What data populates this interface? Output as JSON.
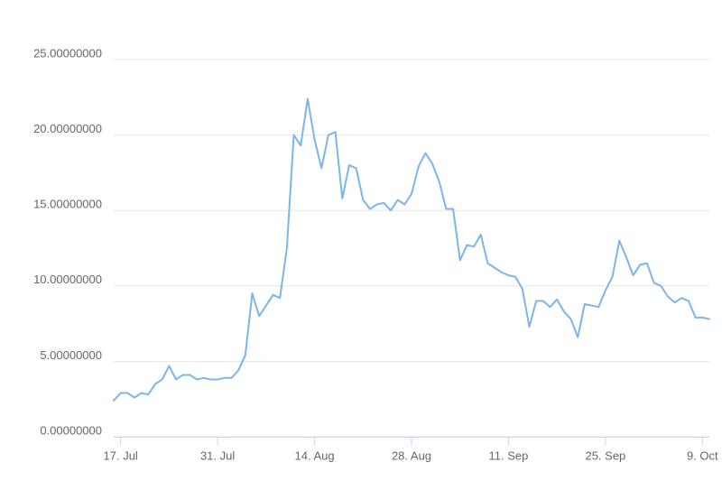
{
  "chart_data": {
    "type": "line",
    "color": "#7cb5ec",
    "grid": true,
    "categories": [
      null,
      "17. Jul",
      null,
      null,
      null,
      null,
      null,
      null,
      null,
      null,
      null,
      null,
      null,
      null,
      null,
      "31. Jul",
      null,
      null,
      null,
      null,
      null,
      null,
      null,
      null,
      null,
      null,
      null,
      null,
      null,
      "14. Aug",
      null,
      null,
      null,
      null,
      null,
      null,
      null,
      null,
      null,
      null,
      null,
      null,
      null,
      "28. Aug",
      null,
      null,
      null,
      null,
      null,
      null,
      null,
      null,
      null,
      null,
      null,
      null,
      null,
      "11. Sep",
      null,
      null,
      null,
      null,
      null,
      null,
      null,
      null,
      null,
      null,
      null,
      null,
      null,
      "25. Sep",
      null,
      null,
      null,
      null,
      null,
      null,
      null,
      null,
      null,
      null,
      null,
      null,
      null,
      "9. Oct",
      null
    ],
    "values": [
      2.4,
      2.9,
      2.9,
      2.6,
      2.9,
      2.8,
      3.5,
      3.8,
      4.7,
      3.8,
      4.1,
      4.1,
      3.8,
      3.9,
      3.8,
      3.8,
      3.9,
      3.9,
      4.4,
      5.4,
      9.5,
      8.0,
      8.7,
      9.4,
      9.2,
      12.5,
      20.0,
      19.3,
      22.4,
      19.7,
      17.8,
      20.0,
      20.2,
      15.8,
      18.0,
      17.8,
      15.7,
      15.1,
      15.4,
      15.5,
      15.0,
      15.7,
      15.4,
      16.1,
      17.9,
      18.8,
      18.1,
      16.9,
      15.1,
      15.1,
      11.7,
      12.7,
      12.6,
      13.4,
      11.5,
      11.2,
      10.9,
      10.7,
      10.6,
      9.8,
      7.3,
      9.0,
      9.0,
      8.6,
      9.1,
      8.3,
      7.8,
      6.6,
      8.8,
      8.7,
      8.6,
      9.7,
      10.6,
      13.0,
      11.9,
      10.7,
      11.4,
      11.5,
      10.2,
      10.0,
      9.3,
      8.9,
      9.2,
      9.0,
      7.9,
      7.9,
      7.8
    ],
    "ylim": [
      0,
      25
    ],
    "yticks": [
      {
        "value": 0,
        "label": "0.00000000"
      },
      {
        "value": 5,
        "label": "5.00000000"
      },
      {
        "value": 10,
        "label": "10.00000000"
      },
      {
        "value": 15,
        "label": "15.00000000"
      },
      {
        "value": 20,
        "label": "20.00000000"
      },
      {
        "value": 25,
        "label": "25.00000000"
      }
    ]
  }
}
